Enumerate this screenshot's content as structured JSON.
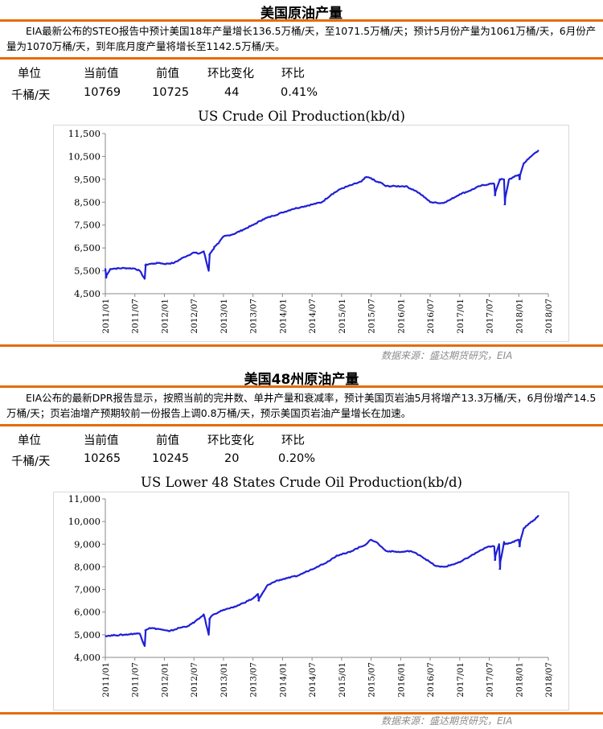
{
  "sections": [
    {
      "title": "美国原油产量",
      "description": "EIA最新公布的STEO报告中预计美国18年产量增长136.5万桶/天，至1071.5万桶/天；预计5月份产量为1061万桶/天，6月份产量为1070万桶/天，到年底月度产量将增长至1142.5万桶/天。",
      "stats": {
        "headers": [
          "单位",
          "当前值",
          "前值",
          "环比变化",
          "环比"
        ],
        "values": [
          "千桶/天",
          "10769",
          "10725",
          "44",
          "0.41%"
        ]
      },
      "source": "数据来源：盛达期货研究，EIA"
    },
    {
      "title": "美国48州原油产量",
      "description": "EIA公布的最新DPR报告显示，按照当前的完井数、单井产量和衰减率，预计美国页岩油5月将增产13.3万桶/天，6月份增产14.5万桶/天；页岩油增产预期较前一份报告上调0.8万桶/天，预示美国页岩油产量增长在加速。",
      "stats": {
        "headers": [
          "单位",
          "当前值",
          "前值",
          "环比变化",
          "环比"
        ],
        "values": [
          "千桶/天",
          "10265",
          "10245",
          "20",
          "0.20%"
        ]
      },
      "source": "数据来源：盛达期货研究，EIA"
    }
  ],
  "chart_data": [
    {
      "type": "line",
      "title": "US Crude Oil Production(kb/d)",
      "xlabel": "",
      "ylabel": "",
      "ylim": [
        4500,
        11500
      ],
      "yticks": [
        4500,
        5500,
        6500,
        7500,
        8500,
        9500,
        10500,
        11500
      ],
      "ytick_labels": [
        "4,500",
        "5,500",
        "6,500",
        "7,500",
        "8,500",
        "9,500",
        "10,500",
        "11,500"
      ],
      "xlim": [
        "2011-01",
        "2018-07"
      ],
      "xtick_labels": [
        "2011/01",
        "2011/07",
        "2012/01",
        "2012/07",
        "2013/01",
        "2013/07",
        "2014/01",
        "2014/07",
        "2015/01",
        "2015/07",
        "2016/01",
        "2016/07",
        "2017/01",
        "2017/07",
        "2018/01",
        "2018/07"
      ],
      "color": "#1f1fd6",
      "grid": false,
      "series": [
        {
          "x": [
            "2011-01",
            "2011-01",
            "2011-02",
            "2011-03",
            "2011-05",
            "2011-07",
            "2011-08",
            "2011-09",
            "2011-09",
            "2011-10",
            "2011-11",
            "2011-12",
            "2012-01",
            "2012-03",
            "2012-05",
            "2012-07",
            "2012-08",
            "2012-09",
            "2012-10",
            "2012-10",
            "2012-11",
            "2012-11",
            "2012-12",
            "2013-01",
            "2013-03",
            "2013-05",
            "2013-07",
            "2013-09",
            "2013-11",
            "2014-01",
            "2014-03",
            "2014-05",
            "2014-07",
            "2014-09",
            "2014-11",
            "2015-01",
            "2015-03",
            "2015-05",
            "2015-06",
            "2015-07",
            "2015-08",
            "2015-09",
            "2015-10",
            "2015-12",
            "2016-02",
            "2016-04",
            "2016-06",
            "2016-07",
            "2016-08",
            "2016-09",
            "2016-10",
            "2016-11",
            "2017-01",
            "2017-03",
            "2017-05",
            "2017-07",
            "2017-08",
            "2017-08",
            "2017-09",
            "2017-09",
            "2017-10",
            "2017-10",
            "2017-11",
            "2017-12",
            "2018-01",
            "2018-01",
            "2018-02",
            "2018-03",
            "2018-04",
            "2018-05"
          ],
          "y": [
            5600,
            5200,
            5580,
            5600,
            5620,
            5600,
            5500,
            5150,
            5750,
            5800,
            5820,
            5850,
            5800,
            5850,
            6100,
            6300,
            6250,
            6350,
            5500,
            6200,
            6450,
            6550,
            6700,
            7000,
            7100,
            7300,
            7500,
            7750,
            7900,
            8050,
            8200,
            8300,
            8400,
            8500,
            8850,
            9100,
            9250,
            9400,
            9600,
            9550,
            9400,
            9350,
            9200,
            9200,
            9200,
            9000,
            8700,
            8500,
            8500,
            8450,
            8500,
            8600,
            8850,
            9000,
            9200,
            9300,
            9300,
            8800,
            9400,
            9500,
            9500,
            8400,
            9500,
            9600,
            9700,
            9500,
            10200,
            10400,
            10600,
            10769
          ]
        }
      ]
    },
    {
      "type": "line",
      "title": "US Lower 48 States Crude Oil Production(kb/d)",
      "xlabel": "",
      "ylabel": "",
      "ylim": [
        4000,
        11000
      ],
      "yticks": [
        4000,
        5000,
        6000,
        7000,
        8000,
        9000,
        10000,
        11000
      ],
      "ytick_labels": [
        "4,000",
        "5,000",
        "6,000",
        "7,000",
        "8,000",
        "9,000",
        "10,000",
        "11,000"
      ],
      "xlim": [
        "2011-01",
        "2018-07"
      ],
      "xtick_labels": [
        "2011/01",
        "2011/07",
        "2012/01",
        "2012/07",
        "2013/01",
        "2013/07",
        "2014/01",
        "2014/07",
        "2015/01",
        "2015/07",
        "2016/01",
        "2016/07",
        "2017/01",
        "2017/07",
        "2018/01",
        "2018/07"
      ],
      "color": "#1f1fd6",
      "grid": false,
      "series": [
        {
          "x": [
            "2011-01",
            "2011-03",
            "2011-05",
            "2011-07",
            "2011-08",
            "2011-09",
            "2011-09",
            "2011-10",
            "2011-12",
            "2012-01",
            "2012-02",
            "2012-04",
            "2012-06",
            "2012-08",
            "2012-09",
            "2012-10",
            "2012-10",
            "2012-11",
            "2012-12",
            "2013-01",
            "2013-03",
            "2013-05",
            "2013-07",
            "2013-08",
            "2013-08",
            "2013-10",
            "2013-12",
            "2014-02",
            "2014-04",
            "2014-06",
            "2014-08",
            "2014-10",
            "2014-12",
            "2015-02",
            "2015-04",
            "2015-06",
            "2015-07",
            "2015-08",
            "2015-09",
            "2015-10",
            "2016-01",
            "2016-03",
            "2016-05",
            "2016-07",
            "2016-08",
            "2016-09",
            "2016-10",
            "2017-01",
            "2017-03",
            "2017-05",
            "2017-07",
            "2017-08",
            "2017-08",
            "2017-09",
            "2017-09",
            "2017-10",
            "2017-10",
            "2017-11",
            "2017-12",
            "2018-01",
            "2018-01",
            "2018-02",
            "2018-03",
            "2018-04",
            "2018-05"
          ],
          "y": [
            4950,
            4980,
            5000,
            5050,
            5050,
            4500,
            5200,
            5300,
            5250,
            5200,
            5150,
            5300,
            5400,
            5700,
            5900,
            5000,
            5700,
            5900,
            6000,
            6100,
            6200,
            6400,
            6600,
            6800,
            6500,
            7200,
            7400,
            7500,
            7600,
            7800,
            8000,
            8200,
            8500,
            8600,
            8800,
            9000,
            9200,
            9100,
            8900,
            8700,
            8650,
            8700,
            8500,
            8200,
            8050,
            8000,
            8000,
            8200,
            8450,
            8700,
            8900,
            8900,
            8300,
            9000,
            7900,
            9100,
            9000,
            9050,
            9100,
            9200,
            8900,
            9700,
            9900,
            10050,
            10265
          ]
        }
      ]
    }
  ]
}
